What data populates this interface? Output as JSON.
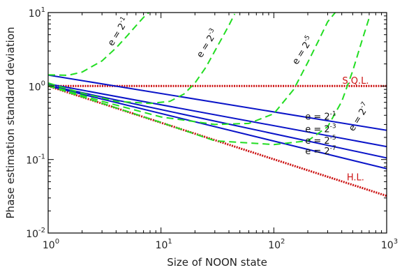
{
  "chart_data": {
    "type": "line",
    "xscale": "log",
    "yscale": "log",
    "xlim": [
      1,
      1000
    ],
    "ylim": [
      0.01,
      10
    ],
    "xlabel": "Size of NOON state",
    "ylabel": "Phase estimation standard deviation",
    "x_ticks": [
      {
        "base": "10",
        "exp": "0",
        "value": 1
      },
      {
        "base": "10",
        "exp": "1",
        "value": 10
      },
      {
        "base": "10",
        "exp": "2",
        "value": 100
      },
      {
        "base": "10",
        "exp": "3",
        "value": 1000
      }
    ],
    "y_ticks": [
      {
        "base": "10",
        "exp": "-2",
        "value": 0.01
      },
      {
        "base": "10",
        "exp": "-1",
        "value": 0.1
      },
      {
        "base": "10",
        "exp": "0",
        "value": 1
      },
      {
        "base": "10",
        "exp": "1",
        "value": 10
      }
    ],
    "colors": {
      "blue": "#0a14c8",
      "green": "#22dd22",
      "red": "#cc1111"
    },
    "series": [
      {
        "name": "S.Q.L.",
        "color": "#cc1111",
        "style": "dotted",
        "x": [
          1,
          1000
        ],
        "y": [
          1.0,
          1.0
        ]
      },
      {
        "name": "H.L.",
        "color": "#cc1111",
        "style": "dotted",
        "x": [
          1,
          1000
        ],
        "y": [
          1.0,
          0.032
        ]
      },
      {
        "name": "e = 2^-1",
        "color": "#0a14c8",
        "style": "solid",
        "x": [
          1,
          1000
        ],
        "y": [
          1.41,
          0.25
        ]
      },
      {
        "name": "e = 2^-3",
        "color": "#0a14c8",
        "style": "solid",
        "x": [
          1,
          1000
        ],
        "y": [
          1.07,
          0.15
        ]
      },
      {
        "name": "e = 2^-5",
        "color": "#0a14c8",
        "style": "solid",
        "x": [
          1,
          1000
        ],
        "y": [
          1.02,
          0.105
        ]
      },
      {
        "name": "e = 2^-7",
        "color": "#0a14c8",
        "style": "solid",
        "x": [
          1,
          1000
        ],
        "y": [
          1.005,
          0.075
        ]
      },
      {
        "name": "e = 2^-1",
        "color": "#22dd22",
        "style": "dashed",
        "x": [
          1,
          1.5,
          2,
          3,
          4,
          5,
          6,
          7,
          7.8
        ],
        "y": [
          1.42,
          1.4,
          1.55,
          2.2,
          3.3,
          4.8,
          6.6,
          8.6,
          10
        ]
      },
      {
        "name": "e = 2^-3",
        "color": "#22dd22",
        "style": "dashed",
        "x": [
          1,
          2,
          4,
          8,
          12,
          16,
          20,
          25,
          30,
          35,
          40,
          45
        ],
        "y": [
          1.1,
          0.8,
          0.62,
          0.58,
          0.62,
          0.78,
          1.1,
          1.8,
          3.0,
          4.6,
          6.7,
          9.6
        ]
      },
      {
        "name": "e = 2^-5",
        "color": "#22dd22",
        "style": "dashed",
        "x": [
          1,
          3,
          10,
          30,
          60,
          100,
          150,
          200,
          250,
          300,
          350
        ],
        "y": [
          1.03,
          0.62,
          0.38,
          0.3,
          0.31,
          0.42,
          0.9,
          2.1,
          4.2,
          7.5,
          10
        ]
      },
      {
        "name": "e = 2^-7",
        "color": "#22dd22",
        "style": "dashed",
        "x": [
          1,
          10,
          30,
          100,
          200,
          300,
          400,
          500,
          600,
          700
        ],
        "y": [
          1.01,
          0.32,
          0.18,
          0.16,
          0.18,
          0.28,
          0.62,
          1.6,
          4.0,
          8.5
        ]
      }
    ],
    "annotations": [
      {
        "id": "sql",
        "text": "S.Q.L.",
        "color": "#cc1111",
        "x": 530,
        "y": 1.08,
        "rotate": 0
      },
      {
        "id": "hl",
        "text": "H.L.",
        "color": "#cc1111",
        "x": 530,
        "y": 0.052,
        "rotate": 0
      },
      {
        "id": "b1",
        "text": "e = 2",
        "sup": "-1",
        "color": "#111111",
        "x": 260,
        "y": 0.35,
        "rotate": 0
      },
      {
        "id": "b3",
        "text": "e = 2",
        "sup": "-3",
        "color": "#111111",
        "x": 260,
        "y": 0.235,
        "rotate": 0
      },
      {
        "id": "b5",
        "text": "e = 2",
        "sup": "-5",
        "color": "#111111",
        "x": 260,
        "y": 0.165,
        "rotate": 0
      },
      {
        "id": "b7",
        "text": "e = 2",
        "sup": "-7",
        "color": "#111111",
        "x": 260,
        "y": 0.118,
        "rotate": 0
      },
      {
        "id": "g1",
        "text": "e = 2",
        "sup": "-1",
        "color": "#111111",
        "x": 4.4,
        "y": 5.2,
        "rotate": -58
      },
      {
        "id": "g3",
        "text": "e = 2",
        "sup": "-3",
        "color": "#111111",
        "x": 27,
        "y": 3.6,
        "rotate": -58
      },
      {
        "id": "g5",
        "text": "e = 2",
        "sup": "-5",
        "color": "#111111",
        "x": 190,
        "y": 2.9,
        "rotate": -58
      },
      {
        "id": "g7",
        "text": "e = 2",
        "sup": "-7",
        "color": "#111111",
        "x": 600,
        "y": 0.36,
        "rotate": -58
      }
    ]
  }
}
